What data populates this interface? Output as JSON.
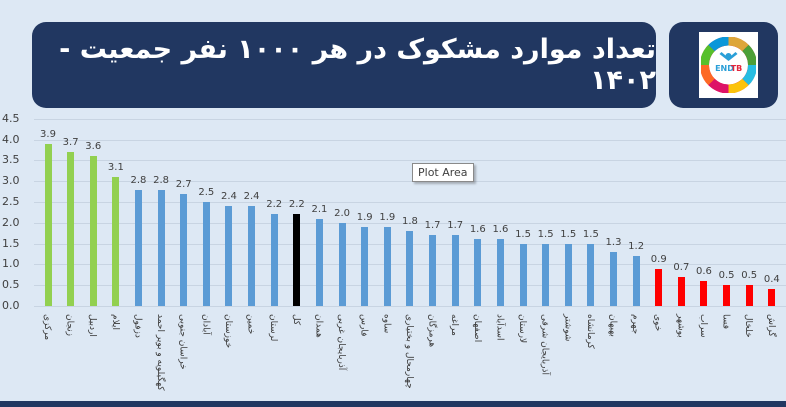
{
  "header": {
    "title": "تعداد موارد مشکوک در هر ۱۰۰۰ نفر جمعیت - ۱۴۰۲",
    "logo": {
      "icon": "end-tb-logo",
      "text_left": "END",
      "text_right": "TB"
    }
  },
  "tooltip": {
    "label": "Plot Area"
  },
  "colors": {
    "background": "#dde8f4",
    "panel": "#213761",
    "green": "#92d050",
    "blue": "#5b9bd5",
    "black": "#000000",
    "red": "#ff0000"
  },
  "chart_data": {
    "type": "bar",
    "title": "تعداد موارد مشکوک در هر ۱۰۰۰ نفر جمعیت - ۱۴۰۲",
    "xlabel": "",
    "ylabel": "",
    "ylim": [
      0,
      4.5
    ],
    "yticks": [
      "0.0",
      "0.5",
      "1.0",
      "1.5",
      "2.0",
      "2.5",
      "3.0",
      "3.5",
      "4.0",
      "4.5"
    ],
    "grid": true,
    "legend": null,
    "categories": [
      "مرکزی",
      "زنجان",
      "اردبیل",
      "ایلام",
      "دزفول",
      "کهگیلویه و بویر احمد",
      "خراسان جنوبی",
      "آبادان",
      "خوزستان",
      "خمین",
      "لرستان",
      "کل",
      "همدان",
      "آذربایجان غربی",
      "فارس",
      "ساوه",
      "چهارمحال و بختیاری",
      "هرمزگان",
      "مراغه",
      "اصفهان",
      "اسدآباد",
      "لارستان",
      "آذربایجان شرقی",
      "شوشتر",
      "کرمانشاه",
      "بهبهان",
      "جهرم",
      "خوی",
      "بوشهر",
      "سراب",
      "فسا",
      "خلخال",
      "گراش"
    ],
    "values": [
      3.9,
      3.7,
      3.6,
      3.1,
      2.8,
      2.8,
      2.7,
      2.5,
      2.4,
      2.4,
      2.2,
      2.2,
      2.1,
      2.0,
      1.9,
      1.9,
      1.8,
      1.7,
      1.7,
      1.6,
      1.6,
      1.5,
      1.5,
      1.5,
      1.5,
      1.3,
      1.2,
      0.9,
      0.7,
      0.6,
      0.5,
      0.5,
      0.4
    ],
    "value_labels": [
      "3.9",
      "3.7",
      "3.6",
      "3.1",
      "2.8",
      "2.8",
      "2.7",
      "2.5",
      "2.4",
      "2.4",
      "2.2",
      "2.2",
      "2.1",
      "2.0",
      "1.9",
      "1.9",
      "1.8",
      "1.7",
      "1.7",
      "1.6",
      "1.6",
      "1.5",
      "1.5",
      "1.5",
      "1.5",
      "1.3",
      "1.2",
      "0.9",
      "0.7",
      "0.6",
      "0.5",
      "0.5",
      "0.4"
    ],
    "bar_colors": [
      "green",
      "green",
      "green",
      "green",
      "blue",
      "blue",
      "blue",
      "blue",
      "blue",
      "blue",
      "blue",
      "black",
      "blue",
      "blue",
      "blue",
      "blue",
      "blue",
      "blue",
      "blue",
      "blue",
      "blue",
      "blue",
      "blue",
      "blue",
      "blue",
      "blue",
      "blue",
      "red",
      "red",
      "red",
      "red",
      "red",
      "red"
    ]
  }
}
